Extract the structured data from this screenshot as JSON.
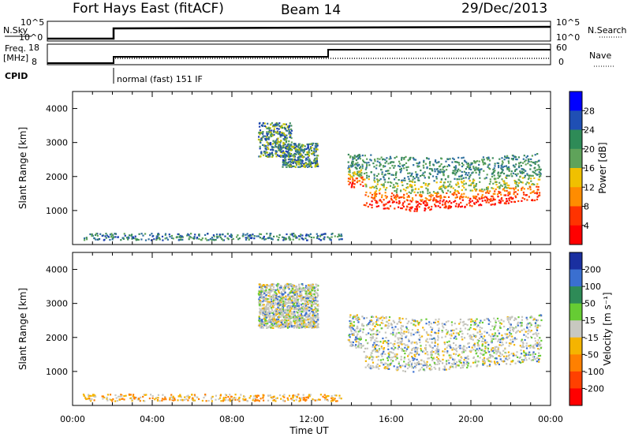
{
  "header": {
    "station": "Fort Hays East (fitACF)",
    "beam": "Beam 14",
    "date": "29/Dec/2013"
  },
  "top_panels": {
    "nsky_label": "N.Sky",
    "nsky_ticks": [
      "10^5",
      "10^0"
    ],
    "nsearch_label": "N.Search",
    "nsearch_ticks": [
      "10^5",
      "10^0"
    ],
    "freq_label_1": "Freq.",
    "freq_label_2": "[MHz]",
    "freq_ticks": [
      "18",
      "8"
    ],
    "nave_label": "Nave",
    "nave_ticks": [
      "60",
      "0"
    ],
    "cpid_label": "CPID",
    "cpid_text": "normal (fast) 151 IF"
  },
  "chart_data": [
    {
      "type": "heatmap",
      "name": "power",
      "ylabel": "Slant Range [km]",
      "xlabel": "",
      "x_tick_labels": [
        "00:00",
        "04:00",
        "08:00",
        "12:00",
        "16:00",
        "20:00",
        "00:00"
      ],
      "y_ticks": [
        1000,
        2000,
        3000,
        4000
      ],
      "ylim": [
        0,
        4500
      ],
      "xlim_hours": [
        0,
        24
      ],
      "colorbar_label": "Power [dB]",
      "colorbar_ticks": [
        "4",
        "8",
        "12",
        "16",
        "20",
        "24",
        "28"
      ],
      "colorbar_colors": [
        "#0000ff",
        "#1f4fb4",
        "#2e8b57",
        "#5fa35a",
        "#f0c000",
        "#ff8c00",
        "#ff3300",
        "#ff0000"
      ],
      "regions": [
        {
          "desc": "near-range ground scatter",
          "t": [
            0.5,
            13.5
          ],
          "r": [
            150,
            350
          ],
          "level": "weak"
        },
        {
          "desc": "early evening band",
          "t": [
            9.3,
            11.0
          ],
          "r": [
            2600,
            3600
          ],
          "level": "moderate"
        },
        {
          "desc": "mid evening band",
          "t": [
            10.5,
            12.3
          ],
          "r": [
            2300,
            3000
          ],
          "level": "moderate"
        },
        {
          "desc": "main backscatter band",
          "t": [
            13.8,
            23.5
          ],
          "r": [
            900,
            2700
          ],
          "level": "strong"
        }
      ]
    },
    {
      "type": "heatmap",
      "name": "velocity",
      "ylabel": "Slant Range [km]",
      "xlabel": "Time UT",
      "x_tick_labels": [
        "00:00",
        "04:00",
        "08:00",
        "12:00",
        "16:00",
        "20:00",
        "00:00"
      ],
      "y_ticks": [
        1000,
        2000,
        3000,
        4000
      ],
      "ylim": [
        0,
        4500
      ],
      "xlim_hours": [
        0,
        24
      ],
      "colorbar_label": "Velocity [m s⁻¹]",
      "colorbar_ticks": [
        "200",
        "100",
        "50",
        "15",
        "-15",
        "-50",
        "-100",
        "-200"
      ],
      "colorbar_colors": [
        "#1a2fa0",
        "#3a6fd0",
        "#2e8b57",
        "#66cc33",
        "#c8c8c0",
        "#f5b400",
        "#ff8000",
        "#ff4000",
        "#ff0000"
      ],
      "regions": [
        {
          "desc": "near-range scatter",
          "t": [
            0.5,
            13.5
          ],
          "r": [
            150,
            350
          ],
          "level": "negative"
        },
        {
          "desc": "evening band",
          "t": [
            9.3,
            12.3
          ],
          "r": [
            2300,
            3600
          ],
          "level": "near-zero"
        },
        {
          "desc": "main band",
          "t": [
            13.8,
            23.5
          ],
          "r": [
            900,
            2700
          ],
          "level": "near-zero"
        }
      ]
    }
  ]
}
